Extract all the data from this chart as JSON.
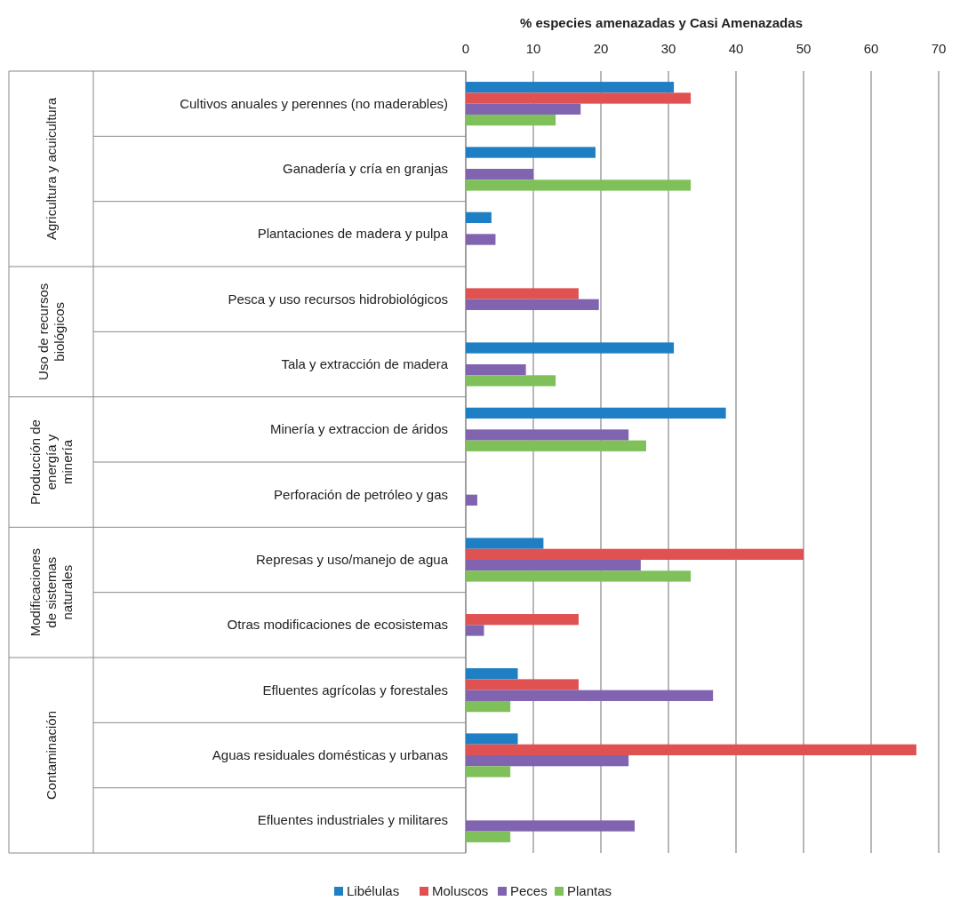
{
  "chart_data": {
    "type": "bar",
    "orientation": "horizontal",
    "xlabel": "% especies amenazadas y Casi Amenazadas",
    "categories": [
      "Cultivos anuales y perennes (no maderables)",
      "Ganadería y cría en granjas",
      "Plantaciones de madera y pulpa",
      "Pesca y uso recursos hidrobiológicos",
      "Tala y extracción de madera",
      "Minería y extraccion de áridos",
      "Perforación de petróleo y gas",
      "Represas y uso/manejo de agua",
      "Otras modificaciones de ecosistemas",
      "Efluentes agrícolas y forestales",
      "Aguas residuales domésticas y urbanas",
      "Efluentes industriales y militares"
    ],
    "series": [
      {
        "name": "Libélulas",
        "color": "#1f7fc4",
        "values": [
          30.8,
          19.2,
          3.8,
          null,
          30.8,
          38.5,
          null,
          11.5,
          null,
          7.7,
          7.7,
          null
        ]
      },
      {
        "name": "Moluscos",
        "color": "#e05252",
        "values": [
          33.3,
          null,
          null,
          16.7,
          null,
          null,
          null,
          50,
          16.7,
          16.7,
          66.7,
          null
        ]
      },
      {
        "name": "Peces",
        "color": "#8064b0",
        "values": [
          17.0,
          10.0,
          4.4,
          19.7,
          8.9,
          24.1,
          1.7,
          25.9,
          2.7,
          36.6,
          24.1,
          25.0
        ]
      },
      {
        "name": "Plantas",
        "color": "#7fc05a",
        "values": [
          13.3,
          33.3,
          null,
          null,
          13.3,
          26.7,
          null,
          33.3,
          null,
          6.6,
          6.6,
          6.6
        ]
      }
    ],
    "annotations": [
      "Agricultura y acuicultura",
      "Uso de recursos\nbiológicos",
      "Producción de\nenergía y\nminería",
      "Modificaciones\nde sistemas\nnaturales",
      "Contaminación"
    ],
    "xlim": [
      0,
      70
    ],
    "xticks": [
      0,
      10,
      20,
      30,
      40,
      50,
      60,
      70
    ],
    "grid": "x",
    "legend": "bottom"
  }
}
